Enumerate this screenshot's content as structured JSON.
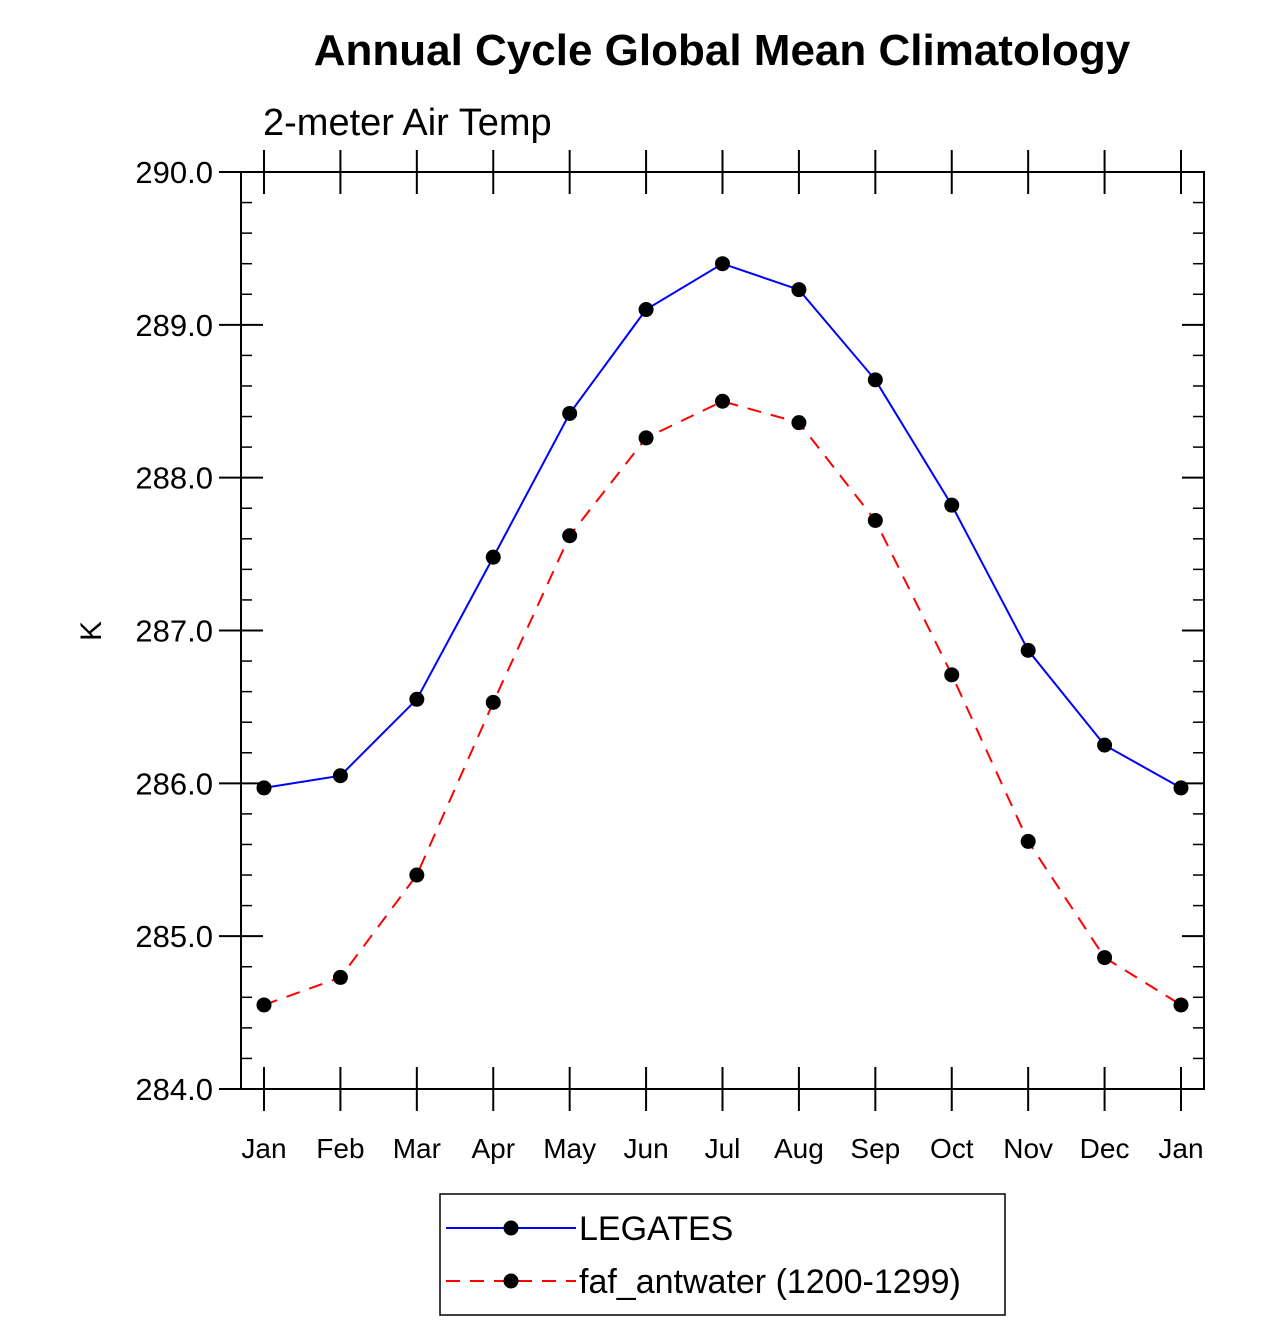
{
  "chart_data": {
    "type": "line",
    "title": "Annual Cycle Global Mean Climatology",
    "subtitle": "2-meter Air Temp",
    "ylabel": "K",
    "xlabel": "",
    "ylim": [
      284.0,
      290.0
    ],
    "yticks": [
      "284.0",
      "285.0",
      "286.0",
      "287.0",
      "288.0",
      "289.0",
      "290.0"
    ],
    "categories": [
      "Jan",
      "Feb",
      "Mar",
      "Apr",
      "May",
      "Jun",
      "Jul",
      "Aug",
      "Sep",
      "Oct",
      "Nov",
      "Dec",
      "Jan"
    ],
    "series": [
      {
        "name": "LEGATES",
        "color": "#0000ff",
        "dash": "solid",
        "marker": "filled-circle",
        "values": [
          285.97,
          286.05,
          286.55,
          287.48,
          288.42,
          289.1,
          289.4,
          289.23,
          288.64,
          287.82,
          286.87,
          286.25,
          285.97
        ]
      },
      {
        "name": "faf_antwater (1200-1299)",
        "color": "#ff0000",
        "dash": "dashed",
        "marker": "filled-circle",
        "values": [
          284.55,
          284.73,
          285.4,
          286.53,
          287.62,
          288.26,
          288.5,
          288.36,
          287.72,
          286.71,
          285.62,
          284.86,
          284.55
        ]
      }
    ],
    "grid": false,
    "legend_placement": "bottom-center"
  }
}
